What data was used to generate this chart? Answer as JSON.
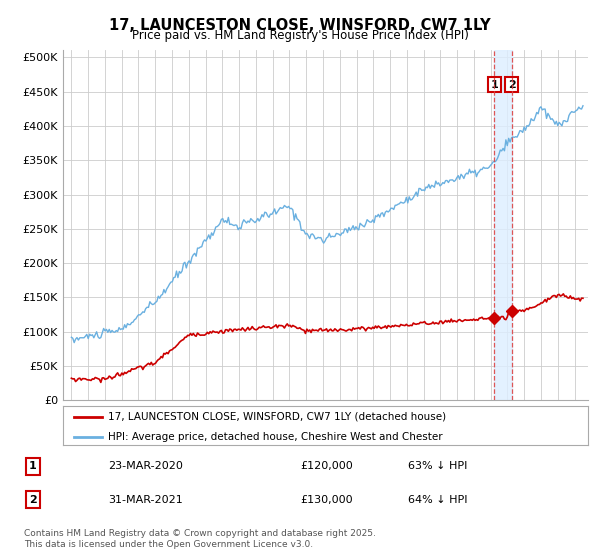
{
  "title": "17, LAUNCESTON CLOSE, WINSFORD, CW7 1LY",
  "subtitle": "Price paid vs. HM Land Registry's House Price Index (HPI)",
  "legend_line1": "17, LAUNCESTON CLOSE, WINSFORD, CW7 1LY (detached house)",
  "legend_line2": "HPI: Average price, detached house, Cheshire West and Chester",
  "footnote": "Contains HM Land Registry data © Crown copyright and database right 2025.\nThis data is licensed under the Open Government Licence v3.0.",
  "hpi_color": "#6ab0e0",
  "price_color": "#cc0000",
  "vline_color": "#dd4444",
  "shade_color": "#ddeeff",
  "marker_color": "#cc0000",
  "annotation_box_color": "#cc0000",
  "transactions": [
    {
      "date": 2020.22,
      "price": 120000,
      "label": "1",
      "pct": "63% ↓ HPI",
      "date_str": "23-MAR-2020"
    },
    {
      "date": 2021.25,
      "price": 130000,
      "label": "2",
      "pct": "64% ↓ HPI",
      "date_str": "31-MAR-2021"
    }
  ],
  "ylim": [
    0,
    510000
  ],
  "yticks": [
    0,
    50000,
    100000,
    150000,
    200000,
    250000,
    300000,
    350000,
    400000,
    450000,
    500000
  ],
  "xlim": [
    1994.5,
    2025.8
  ],
  "xlabel_start": 1995,
  "xlabel_end": 2025,
  "background_color": "#ffffff",
  "grid_color": "#cccccc"
}
